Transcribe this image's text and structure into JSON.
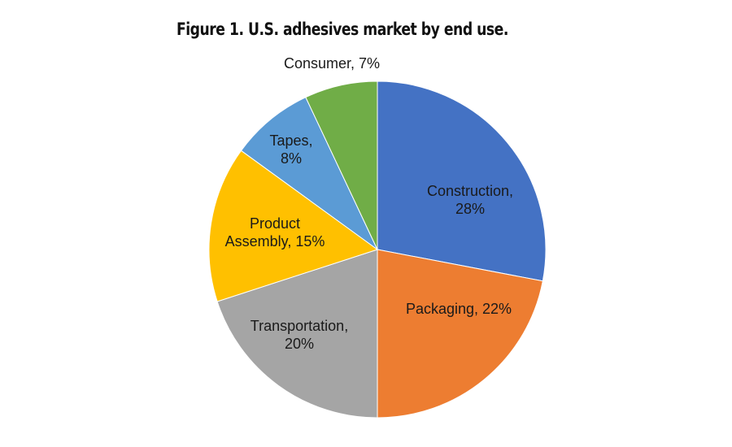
{
  "chart_data": {
    "type": "pie",
    "title": "Figure 1. U.S. adhesives market by end use.",
    "start": "12 o'clock",
    "direction": "clockwise",
    "slices": [
      {
        "name": "Construction",
        "value": 28,
        "color": "#4472c4",
        "label_lines": [
          "Construction,",
          "28%"
        ]
      },
      {
        "name": "Packaging",
        "value": 22,
        "color": "#ed7d31",
        "label_lines": [
          "Packaging, 22%"
        ]
      },
      {
        "name": "Transportation",
        "value": 20,
        "color": "#a5a5a5",
        "label_lines": [
          "Transportation,",
          "20%"
        ]
      },
      {
        "name": "Product Assembly",
        "value": 15,
        "color": "#ffc000",
        "label_lines": [
          "Product",
          "Assembly, 15%"
        ]
      },
      {
        "name": "Tapes",
        "value": 8,
        "color": "#5b9bd5",
        "label_lines": [
          "Tapes,",
          "8%"
        ]
      },
      {
        "name": "Consumer",
        "value": 7,
        "color": "#70ad47",
        "label_lines": [
          "Consumer, 7%"
        ]
      }
    ]
  }
}
